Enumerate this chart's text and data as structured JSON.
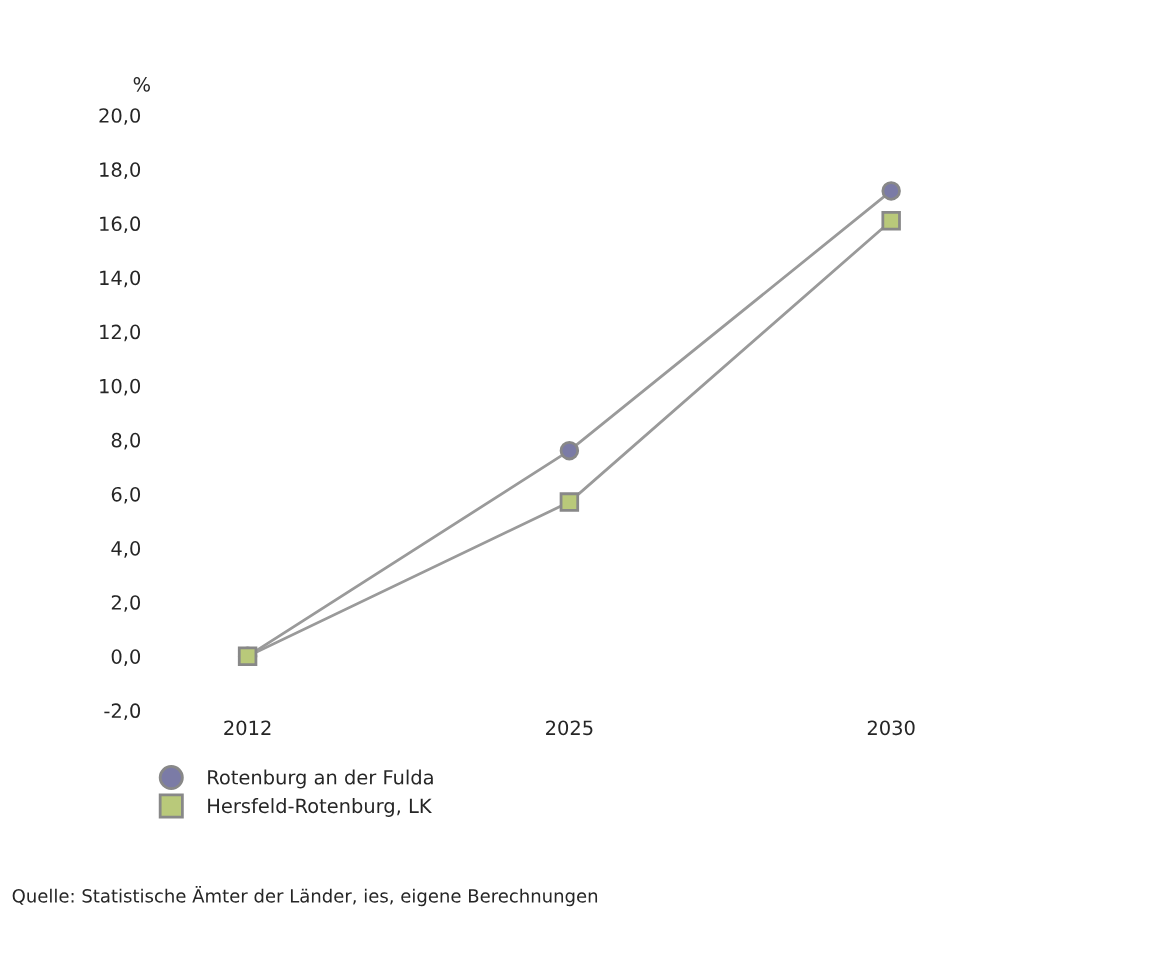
{
  "chart_data": {
    "type": "line",
    "ylabel": "%",
    "categories": [
      "2012",
      "2025",
      "2030"
    ],
    "series": [
      {
        "name": "Rotenburg an der Fulda",
        "color": "#7b7ba6",
        "marker": "circle",
        "values": [
          0.0,
          7.6,
          17.2
        ]
      },
      {
        "name": "Hersfeld-Rotenburg, LK",
        "color": "#b9c97a",
        "marker": "square",
        "values": [
          0.0,
          5.7,
          16.1
        ]
      }
    ],
    "ylim": [
      -2.0,
      20.0
    ],
    "yticks": [
      {
        "value": -2,
        "label": "-2,0"
      },
      {
        "value": 0,
        "label": "0,0"
      },
      {
        "value": 2,
        "label": "2,0"
      },
      {
        "value": 4,
        "label": "4,0"
      },
      {
        "value": 6,
        "label": "6,0"
      },
      {
        "value": 8,
        "label": "8,0"
      },
      {
        "value": 10,
        "label": "10,0"
      },
      {
        "value": 12,
        "label": "12,0"
      },
      {
        "value": 14,
        "label": "14,0"
      },
      {
        "value": 16,
        "label": "16,0"
      },
      {
        "value": 18,
        "label": "18,0"
      },
      {
        "value": 20,
        "label": "20,0"
      }
    ],
    "legend": "bottom",
    "grid": false,
    "annotations": [
      "Quelle: Statistische Ämter der Länder, ies, eigene Berechnungen"
    ]
  }
}
